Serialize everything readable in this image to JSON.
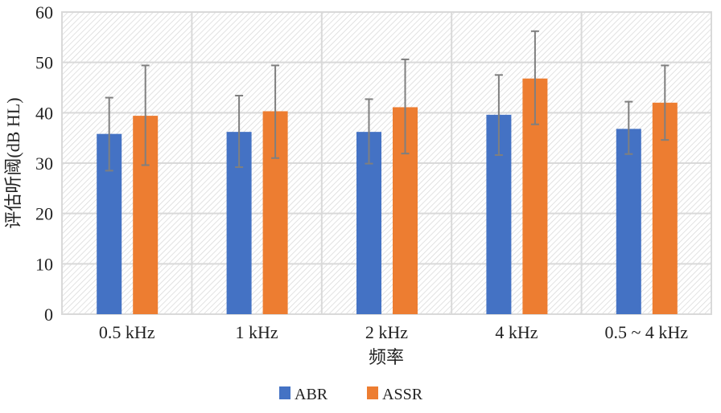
{
  "chart_data": {
    "type": "bar",
    "title": "",
    "xlabel": "频率",
    "ylabel": "评估听阈(dB HL)",
    "ylim": [
      0,
      60
    ],
    "yticks": [
      0,
      10,
      20,
      30,
      40,
      50,
      60
    ],
    "categories": [
      "0.5 kHz",
      "1 kHz",
      "2 kHz",
      "4 kHz",
      "0.5 ~ 4 kHz"
    ],
    "grid": true,
    "legend_position": "bottom-center",
    "series": [
      {
        "name": "ABR",
        "color": "#4472C4",
        "values": [
          35.8,
          36.2,
          36.2,
          39.6,
          36.8
        ],
        "error_low": [
          28.5,
          29.2,
          29.9,
          31.6,
          31.8
        ],
        "error_high": [
          43.0,
          43.4,
          42.7,
          47.5,
          42.2
        ]
      },
      {
        "name": "ASSR",
        "color": "#ED7D31",
        "values": [
          39.4,
          40.3,
          41.1,
          46.8,
          42.0
        ],
        "error_low": [
          29.6,
          31.0,
          31.9,
          37.7,
          34.6
        ],
        "error_high": [
          49.4,
          49.4,
          50.6,
          56.2,
          49.4
        ]
      }
    ]
  }
}
